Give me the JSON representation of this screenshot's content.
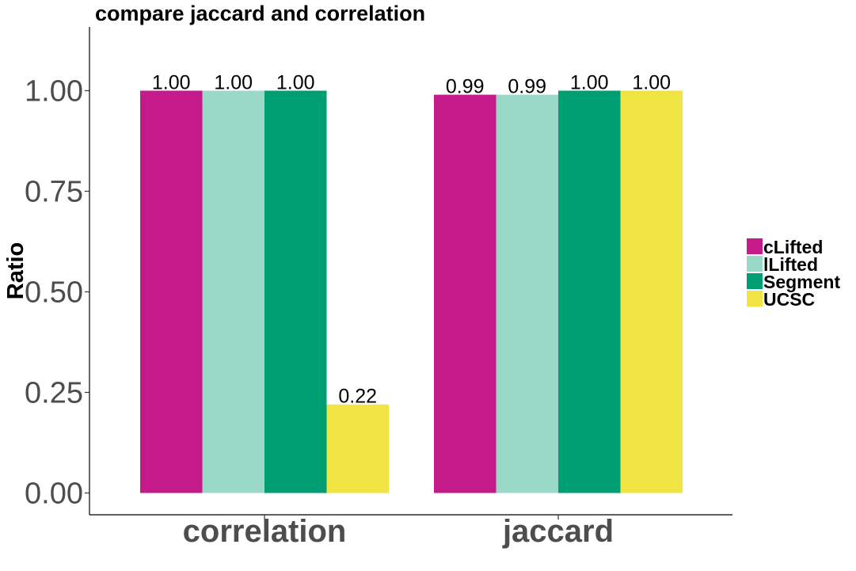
{
  "chart_data": {
    "type": "bar",
    "title": "compare jaccard and correlation",
    "xlabel": "",
    "ylabel": "Ratio",
    "categories": [
      "correlation",
      "jaccard"
    ],
    "series": [
      {
        "name": "cLifted",
        "color": "#C51B8A",
        "values": [
          1.0,
          0.99
        ],
        "labels": [
          "1.00",
          "0.99"
        ]
      },
      {
        "name": "lLifted",
        "color": "#9AD8C8",
        "values": [
          1.0,
          0.99
        ],
        "labels": [
          "1.00",
          "0.99"
        ]
      },
      {
        "name": "Segment",
        "color": "#009E73",
        "values": [
          1.0,
          1.0
        ],
        "labels": [
          "1.00",
          "1.00"
        ]
      },
      {
        "name": "UCSC",
        "color": "#F0E442",
        "values": [
          0.22,
          1.0
        ],
        "labels": [
          "0.22",
          "1.00"
        ]
      }
    ],
    "yticks": [
      "0.00",
      "0.25",
      "0.50",
      "0.75",
      "1.00"
    ],
    "ylim": [
      0,
      1.1
    ],
    "grid": false,
    "legend_position": "right"
  }
}
